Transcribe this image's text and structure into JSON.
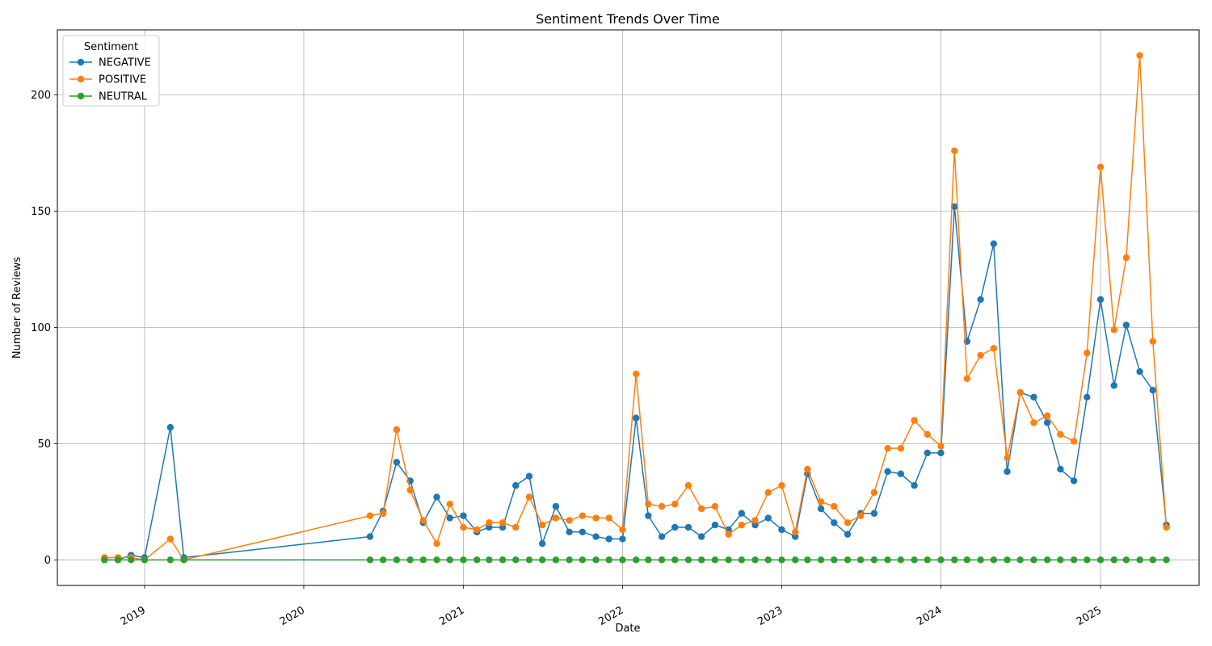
{
  "chart_data": {
    "type": "line",
    "title": "Sentiment Trends Over Time",
    "xlabel": "Date",
    "ylabel": "Number of Reviews",
    "xlim": [
      "2018-06-15",
      "2025-08-15"
    ],
    "ylim": [
      -11,
      228
    ],
    "x_ticks": [
      "2019",
      "2020",
      "2021",
      "2022",
      "2023",
      "2024",
      "2025"
    ],
    "y_ticks": [
      0,
      50,
      100,
      150,
      200
    ],
    "grid": true,
    "legend": {
      "title": "Sentiment",
      "position": "top-left"
    },
    "x": [
      "2018-10-01",
      "2018-11-01",
      "2018-12-01",
      "2019-01-01",
      "2019-03-01",
      "2019-04-01",
      "2020-06-01",
      "2020-07-01",
      "2020-08-01",
      "2020-09-01",
      "2020-10-01",
      "2020-11-01",
      "2020-12-01",
      "2021-01-01",
      "2021-02-01",
      "2021-03-01",
      "2021-04-01",
      "2021-05-01",
      "2021-06-01",
      "2021-07-01",
      "2021-08-01",
      "2021-09-01",
      "2021-10-01",
      "2021-11-01",
      "2021-12-01",
      "2022-01-01",
      "2022-02-01",
      "2022-03-01",
      "2022-04-01",
      "2022-05-01",
      "2022-06-01",
      "2022-07-01",
      "2022-08-01",
      "2022-09-01",
      "2022-10-01",
      "2022-11-01",
      "2022-12-01",
      "2023-01-01",
      "2023-02-01",
      "2023-03-01",
      "2023-04-01",
      "2023-05-01",
      "2023-06-01",
      "2023-07-01",
      "2023-08-01",
      "2023-09-01",
      "2023-10-01",
      "2023-11-01",
      "2023-12-01",
      "2024-01-01",
      "2024-02-01",
      "2024-03-01",
      "2024-04-01",
      "2024-05-01",
      "2024-06-01",
      "2024-07-01",
      "2024-08-01",
      "2024-09-01",
      "2024-10-01",
      "2024-11-01",
      "2024-12-01",
      "2025-01-01",
      "2025-02-01",
      "2025-03-01",
      "2025-04-01",
      "2025-05-01",
      "2025-06-01"
    ],
    "series": [
      {
        "name": "NEGATIVE",
        "color": "#1f77b4",
        "values": [
          0,
          0,
          2,
          1,
          57,
          1,
          10,
          21,
          42,
          34,
          16,
          27,
          18,
          19,
          12,
          14,
          14,
          32,
          36,
          7,
          23,
          12,
          12,
          10,
          9,
          9,
          61,
          19,
          10,
          14,
          14,
          10,
          15,
          13,
          20,
          15,
          18,
          13,
          10,
          37,
          22,
          16,
          11,
          20,
          20,
          38,
          37,
          32,
          46,
          46,
          152,
          94,
          112,
          136,
          38,
          72,
          70,
          59,
          39,
          34,
          70,
          112,
          75,
          101,
          81,
          73,
          15
        ]
      },
      {
        "name": "POSITIVE",
        "color": "#ff7f0e",
        "values": [
          1,
          1,
          1,
          0,
          9,
          0,
          19,
          20,
          56,
          30,
          17,
          7,
          24,
          14,
          13,
          16,
          16,
          14,
          27,
          15,
          18,
          17,
          19,
          18,
          18,
          13,
          80,
          24,
          23,
          24,
          32,
          22,
          23,
          11,
          15,
          17,
          29,
          32,
          12,
          39,
          25,
          23,
          16,
          19,
          29,
          48,
          48,
          60,
          54,
          49,
          176,
          78,
          88,
          91,
          44,
          72,
          59,
          62,
          54,
          51,
          89,
          169,
          99,
          130,
          217,
          94,
          14
        ]
      },
      {
        "name": "NEUTRAL",
        "color": "#2ca02c",
        "values": [
          0,
          0,
          0,
          0,
          0,
          0,
          0,
          0,
          0,
          0,
          0,
          0,
          0,
          0,
          0,
          0,
          0,
          0,
          0,
          0,
          0,
          0,
          0,
          0,
          0,
          0,
          0,
          0,
          0,
          0,
          0,
          0,
          0,
          0,
          0,
          0,
          0,
          0,
          0,
          0,
          0,
          0,
          0,
          0,
          0,
          0,
          0,
          0,
          0,
          0,
          0,
          0,
          0,
          0,
          0,
          0,
          0,
          0,
          0,
          0,
          0,
          0,
          0,
          0,
          0,
          0,
          0
        ]
      }
    ]
  }
}
